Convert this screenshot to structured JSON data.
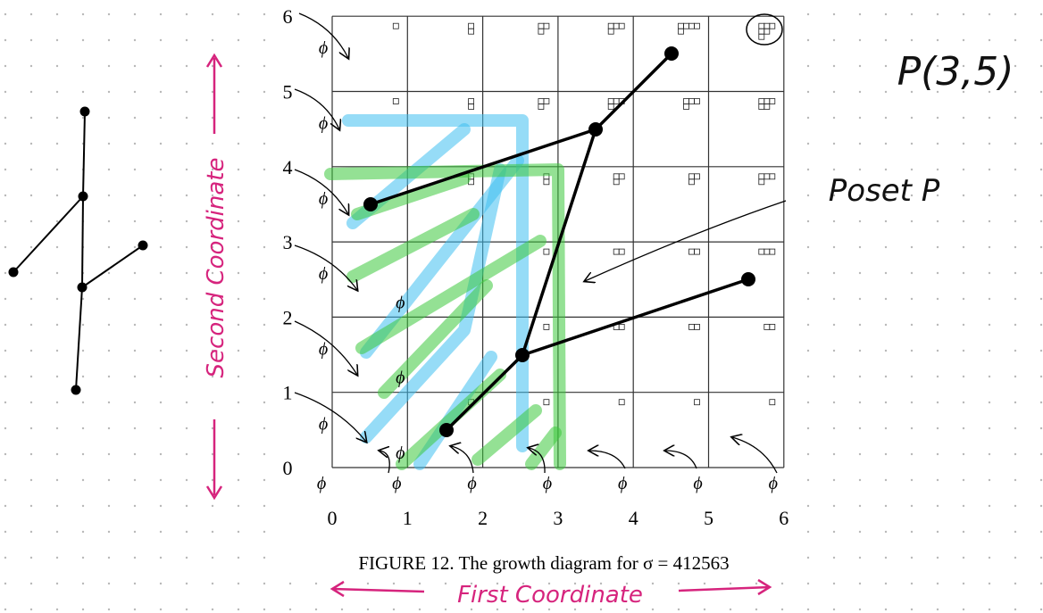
{
  "figure": {
    "row_labels": [
      "0",
      "1",
      "2",
      "3",
      "4",
      "5",
      "6"
    ],
    "column_labels": [
      "0",
      "1",
      "2",
      "3",
      "4",
      "5",
      "6"
    ],
    "empty_symbol": "ϕ",
    "caption": "FIGURE 12. The growth diagram for σ = 412563"
  },
  "annotations": {
    "point": "P(3,5)",
    "poset": "Poset P",
    "second_axis": "Second Coordinate",
    "first_axis": "First Coordinate"
  }
}
